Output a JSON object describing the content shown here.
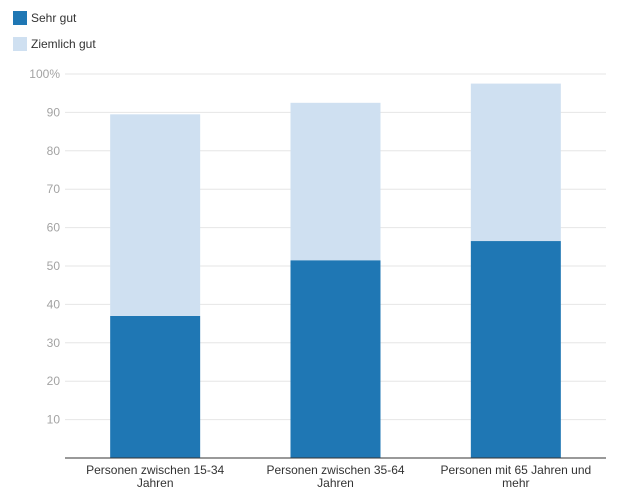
{
  "chart_data": {
    "type": "bar",
    "stacked": true,
    "categories": [
      [
        "Personen zwischen 15-34",
        "Jahren"
      ],
      [
        "Personen zwischen 35-64",
        "Jahren"
      ],
      [
        "Personen mit 65 Jahren und",
        "mehr"
      ]
    ],
    "series": [
      {
        "name": "Sehr gut",
        "color": "#1f77b4",
        "values": [
          37,
          51.5,
          56.5
        ]
      },
      {
        "name": "Ziemlich gut",
        "color": "#cfe0f1",
        "values": [
          52.5,
          41,
          41
        ]
      }
    ],
    "y_ticks": [
      "",
      "10",
      "20",
      "30",
      "40",
      "50",
      "60",
      "70",
      "80",
      "90",
      "100%"
    ],
    "ylim": [
      0,
      100
    ],
    "grid": true,
    "legend_position": "top-left"
  }
}
